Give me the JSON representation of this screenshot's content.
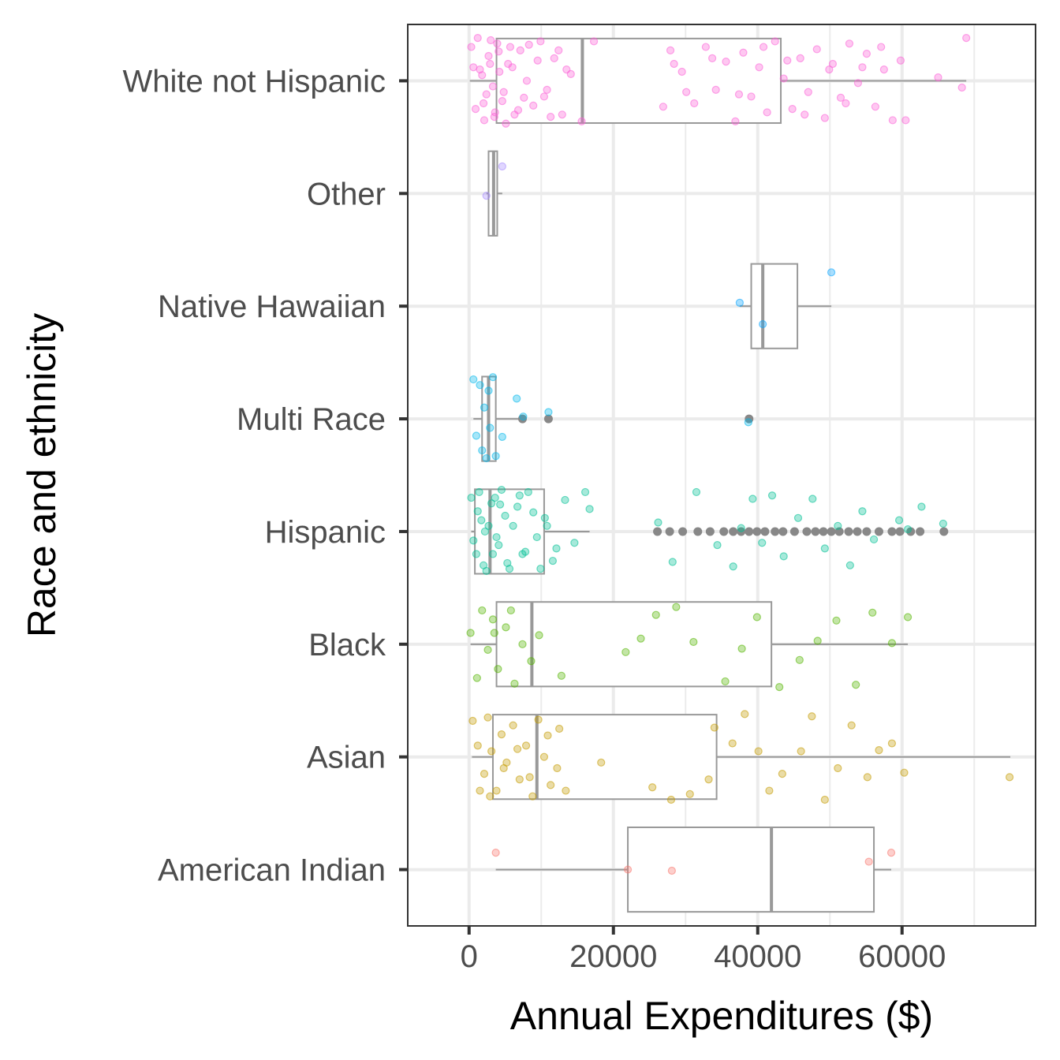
{
  "chart_data": {
    "type": "boxplot",
    "orientation": "horizontal",
    "title": "",
    "xlabel": "Annual Expenditures ($)",
    "ylabel": "Race and ethnicity",
    "xlim": [
      -8500,
      78500
    ],
    "x_ticks": [
      0,
      20000,
      40000,
      60000
    ],
    "x_tick_labels": [
      "0",
      "20000",
      "40000",
      "60000"
    ],
    "grid": true,
    "legend": "none",
    "categories": [
      "American Indian",
      "Asian",
      "Black",
      "Hispanic",
      "Multi Race",
      "Native Hawaiian",
      "Other",
      "White not Hispanic"
    ],
    "series": [
      {
        "category": "American Indian",
        "color": "#F8766D",
        "whisker_low": 3700,
        "q1": 22000,
        "median": 41900,
        "q3": 56100,
        "whisker_high": 58500,
        "outliers": [],
        "points": [
          [
            3700,
            0.15
          ],
          [
            28100,
            -0.01
          ],
          [
            55400,
            0.07
          ],
          [
            58500,
            0.15
          ],
          [
            22000,
            0.0
          ]
        ]
      },
      {
        "category": "Asian",
        "color": "#C49A00",
        "whisker_low": 400,
        "q1": 3300,
        "median": 9400,
        "q3": 34300,
        "whisker_high": 75000,
        "outliers": [],
        "points": [
          [
            500,
            0.32
          ],
          [
            1200,
            0.1
          ],
          [
            2100,
            -0.15
          ],
          [
            2600,
            0.35
          ],
          [
            3100,
            0.05
          ],
          [
            3800,
            -0.3
          ],
          [
            4500,
            0.2
          ],
          [
            5200,
            -0.05
          ],
          [
            6100,
            0.28
          ],
          [
            7000,
            -0.2
          ],
          [
            7900,
            0.1
          ],
          [
            8800,
            -0.35
          ],
          [
            9600,
            0.33
          ],
          [
            10400,
            0.0
          ],
          [
            11300,
            -0.25
          ],
          [
            12500,
            0.25
          ],
          [
            13400,
            -0.3
          ],
          [
            18300,
            -0.05
          ],
          [
            25400,
            -0.27
          ],
          [
            28000,
            -0.38
          ],
          [
            30600,
            -0.33
          ],
          [
            33200,
            -0.2
          ],
          [
            34000,
            0.26
          ],
          [
            36500,
            0.12
          ],
          [
            38200,
            0.38
          ],
          [
            40100,
            0.05
          ],
          [
            41600,
            -0.3
          ],
          [
            43400,
            -0.15
          ],
          [
            46000,
            0.05
          ],
          [
            47500,
            0.36
          ],
          [
            49300,
            -0.38
          ],
          [
            51100,
            -0.1
          ],
          [
            53000,
            0.28
          ],
          [
            55200,
            -0.18
          ],
          [
            56800,
            0.06
          ],
          [
            58600,
            0.12
          ],
          [
            60300,
            -0.14
          ],
          [
            74900,
            -0.18
          ],
          [
            1500,
            -0.3
          ],
          [
            2900,
            -0.35
          ],
          [
            4800,
            -0.1
          ],
          [
            6700,
            0.07
          ],
          [
            8400,
            -0.18
          ],
          [
            10900,
            0.19
          ],
          [
            12200,
            -0.1
          ]
        ]
      },
      {
        "category": "Black",
        "color": "#53B400",
        "whisker_low": 200,
        "q1": 3800,
        "median": 8700,
        "q3": 41900,
        "whisker_high": 60800,
        "outliers": [],
        "points": [
          [
            200,
            0.1
          ],
          [
            1100,
            -0.3
          ],
          [
            1800,
            0.3
          ],
          [
            2600,
            -0.05
          ],
          [
            3300,
            0.22
          ],
          [
            4000,
            -0.22
          ],
          [
            5100,
            0.15
          ],
          [
            6300,
            -0.35
          ],
          [
            7400,
            0.0
          ],
          [
            8600,
            -0.15
          ],
          [
            9700,
            0.08
          ],
          [
            12800,
            -0.28
          ],
          [
            21700,
            -0.07
          ],
          [
            23800,
            0.05
          ],
          [
            25900,
            0.26
          ],
          [
            28700,
            0.33
          ],
          [
            31100,
            0.02
          ],
          [
            35500,
            -0.33
          ],
          [
            37800,
            -0.04
          ],
          [
            39900,
            0.24
          ],
          [
            43000,
            -0.38
          ],
          [
            45800,
            -0.14
          ],
          [
            48300,
            0.03
          ],
          [
            50900,
            0.21
          ],
          [
            53600,
            -0.36
          ],
          [
            55900,
            0.28
          ],
          [
            58600,
            0.01
          ],
          [
            60800,
            0.24
          ],
          [
            3500,
            0.1
          ],
          [
            5800,
            0.3
          ]
        ]
      },
      {
        "category": "Hispanic",
        "color": "#00C094",
        "whisker_low": 300,
        "q1": 800,
        "median": 2900,
        "q3": 10400,
        "whisker_high": 16700,
        "outliers": [
          26100,
          27800,
          29600,
          31700,
          33400,
          35300,
          36600,
          37700,
          38800,
          39900,
          41000,
          42400,
          43500,
          45100,
          46800,
          48000,
          49100,
          50200,
          51300,
          52600,
          53800,
          55100,
          56800,
          58600,
          59700,
          61200,
          62500,
          65800
        ],
        "points": [
          [
            300,
            0.3
          ],
          [
            1000,
            -0.2
          ],
          [
            1700,
            0.1
          ],
          [
            2400,
            -0.35
          ],
          [
            3100,
            0.25
          ],
          [
            3800,
            -0.05
          ],
          [
            4500,
            0.37
          ],
          [
            5300,
            -0.28
          ],
          [
            6100,
            0.05
          ],
          [
            7000,
            0.32
          ],
          [
            7800,
            -0.18
          ],
          [
            8900,
            0.17
          ],
          [
            9900,
            -0.33
          ],
          [
            10800,
            0.05
          ],
          [
            12100,
            -0.15
          ],
          [
            13300,
            0.28
          ],
          [
            14600,
            -0.1
          ],
          [
            16100,
            0.35
          ],
          [
            16700,
            0.2
          ],
          [
            26200,
            0.08
          ],
          [
            28200,
            -0.27
          ],
          [
            31500,
            0.35
          ],
          [
            34400,
            -0.12
          ],
          [
            36600,
            -0.31
          ],
          [
            37700,
            0.03
          ],
          [
            39300,
            0.29
          ],
          [
            40600,
            -0.1
          ],
          [
            42000,
            0.32
          ],
          [
            43600,
            -0.22
          ],
          [
            45600,
            0.12
          ],
          [
            47600,
            0.29
          ],
          [
            49300,
            -0.15
          ],
          [
            51100,
            0.05
          ],
          [
            52800,
            -0.3
          ],
          [
            54500,
            0.18
          ],
          [
            56100,
            -0.07
          ],
          [
            59600,
            0.1
          ],
          [
            60800,
            0.02
          ],
          [
            62700,
            0.22
          ],
          [
            65700,
            0.07
          ],
          [
            1200,
            0.18
          ],
          [
            2000,
            -0.3
          ],
          [
            2700,
            0.05
          ],
          [
            3600,
            0.3
          ],
          [
            4100,
            -0.12
          ],
          [
            5000,
            0.14
          ],
          [
            5600,
            -0.33
          ],
          [
            6700,
            0.22
          ],
          [
            7400,
            -0.2
          ],
          [
            8200,
            0.35
          ],
          [
            9400,
            -0.05
          ],
          [
            10500,
            0.12
          ],
          [
            11600,
            -0.26
          ],
          [
            600,
            -0.08
          ],
          [
            1400,
            0.35
          ],
          [
            2200,
            0.0
          ],
          [
            3300,
            -0.2
          ],
          [
            4300,
            0.24
          ]
        ]
      },
      {
        "category": "Multi Race",
        "color": "#00B6EB",
        "whisker_low": 600,
        "q1": 1800,
        "median": 2700,
        "q3": 3700,
        "whisker_high": 7200,
        "outliers": [
          7400,
          11000,
          38800
        ],
        "points": [
          [
            600,
            0.35
          ],
          [
            1000,
            -0.15
          ],
          [
            1500,
            0.3
          ],
          [
            1800,
            -0.28
          ],
          [
            2100,
            0.1
          ],
          [
            2400,
            -0.35
          ],
          [
            2700,
            0.25
          ],
          [
            2900,
            -0.08
          ],
          [
            3300,
            0.37
          ],
          [
            3700,
            -0.33
          ],
          [
            4600,
            -0.16
          ],
          [
            6600,
            0.18
          ],
          [
            7500,
            0.02
          ],
          [
            11000,
            0.06
          ],
          [
            38700,
            -0.03
          ]
        ]
      },
      {
        "category": "Native Hawaiian",
        "color": "#06A4FF",
        "whisker_low": 37500,
        "q1": 39100,
        "median": 40700,
        "q3": 45500,
        "whisker_high": 50200,
        "outliers": [],
        "points": [
          [
            37500,
            0.03
          ],
          [
            40700,
            -0.16
          ],
          [
            50200,
            0.3
          ]
        ]
      },
      {
        "category": "Other",
        "color": "#A58AFF",
        "whisker_low": 2400,
        "q1": 2700,
        "median": 3400,
        "q3": 3900,
        "whisker_high": 4600,
        "outliers": [],
        "points": [
          [
            2400,
            -0.02
          ],
          [
            4600,
            0.24
          ]
        ]
      },
      {
        "category": "White not Hispanic",
        "color": "#FB61D7",
        "whisker_low": 100,
        "q1": 3800,
        "median": 15700,
        "q3": 43200,
        "whisker_high": 68900,
        "outliers": [],
        "points": [
          [
            300,
            0.3
          ],
          [
            900,
            -0.25
          ],
          [
            1500,
            0.1
          ],
          [
            2100,
            -0.35
          ],
          [
            2700,
            0.22
          ],
          [
            3300,
            -0.05
          ],
          [
            3900,
            0.33
          ],
          [
            4600,
            -0.18
          ],
          [
            5400,
            0.15
          ],
          [
            6300,
            -0.3
          ],
          [
            7100,
            0.27
          ],
          [
            8000,
            0.0
          ],
          [
            8900,
            -0.22
          ],
          [
            9900,
            0.35
          ],
          [
            10800,
            -0.08
          ],
          [
            11800,
            0.2
          ],
          [
            12900,
            -0.3
          ],
          [
            14100,
            0.06
          ],
          [
            15600,
            -0.36
          ],
          [
            17300,
            0.35
          ],
          [
            26900,
            -0.23
          ],
          [
            27900,
            0.27
          ],
          [
            29500,
            0.08
          ],
          [
            31200,
            -0.2
          ],
          [
            32800,
            0.3
          ],
          [
            34200,
            -0.08
          ],
          [
            35600,
            0.17
          ],
          [
            36900,
            -0.36
          ],
          [
            38000,
            0.25
          ],
          [
            39100,
            -0.14
          ],
          [
            40200,
            0.12
          ],
          [
            41300,
            -0.28
          ],
          [
            42400,
            0.35
          ],
          [
            43600,
            0.02
          ],
          [
            44800,
            -0.25
          ],
          [
            45900,
            0.2
          ],
          [
            47000,
            -0.1
          ],
          [
            48200,
            0.28
          ],
          [
            49300,
            -0.33
          ],
          [
            50400,
            0.15
          ],
          [
            51500,
            -0.15
          ],
          [
            52700,
            0.33
          ],
          [
            53900,
            -0.02
          ],
          [
            55100,
            0.24
          ],
          [
            56300,
            -0.23
          ],
          [
            57500,
            0.1
          ],
          [
            58700,
            -0.35
          ],
          [
            59800,
            0.18
          ],
          [
            60500,
            -0.35
          ],
          [
            65000,
            0.03
          ],
          [
            68300,
            -0.06
          ],
          [
            68900,
            0.38
          ],
          [
            1800,
            0.05
          ],
          [
            2400,
            -0.12
          ],
          [
            3000,
            0.36
          ],
          [
            3600,
            -0.28
          ],
          [
            4200,
            0.08
          ],
          [
            5100,
            -0.38
          ],
          [
            6000,
            0.12
          ],
          [
            7600,
            -0.15
          ],
          [
            9500,
            0.18
          ],
          [
            11300,
            -0.32
          ],
          [
            13500,
            0.1
          ],
          [
            600,
            0.12
          ],
          [
            1200,
            0.38
          ],
          [
            2000,
            -0.2
          ],
          [
            2900,
            0.15
          ],
          [
            3500,
            -0.32
          ],
          [
            4100,
            0.26
          ],
          [
            4800,
            -0.1
          ],
          [
            5700,
            0.3
          ],
          [
            6800,
            -0.26
          ],
          [
            8300,
            0.32
          ],
          [
            10400,
            -0.14
          ],
          [
            12400,
            0.27
          ],
          [
            28400,
            0.15
          ],
          [
            30100,
            -0.1
          ],
          [
            33700,
            0.2
          ],
          [
            37400,
            -0.12
          ],
          [
            40800,
            0.3
          ],
          [
            44100,
            0.18
          ],
          [
            46500,
            -0.3
          ],
          [
            49900,
            0.1
          ],
          [
            52200,
            -0.2
          ],
          [
            54500,
            0.12
          ],
          [
            57100,
            0.3
          ]
        ]
      }
    ]
  }
}
